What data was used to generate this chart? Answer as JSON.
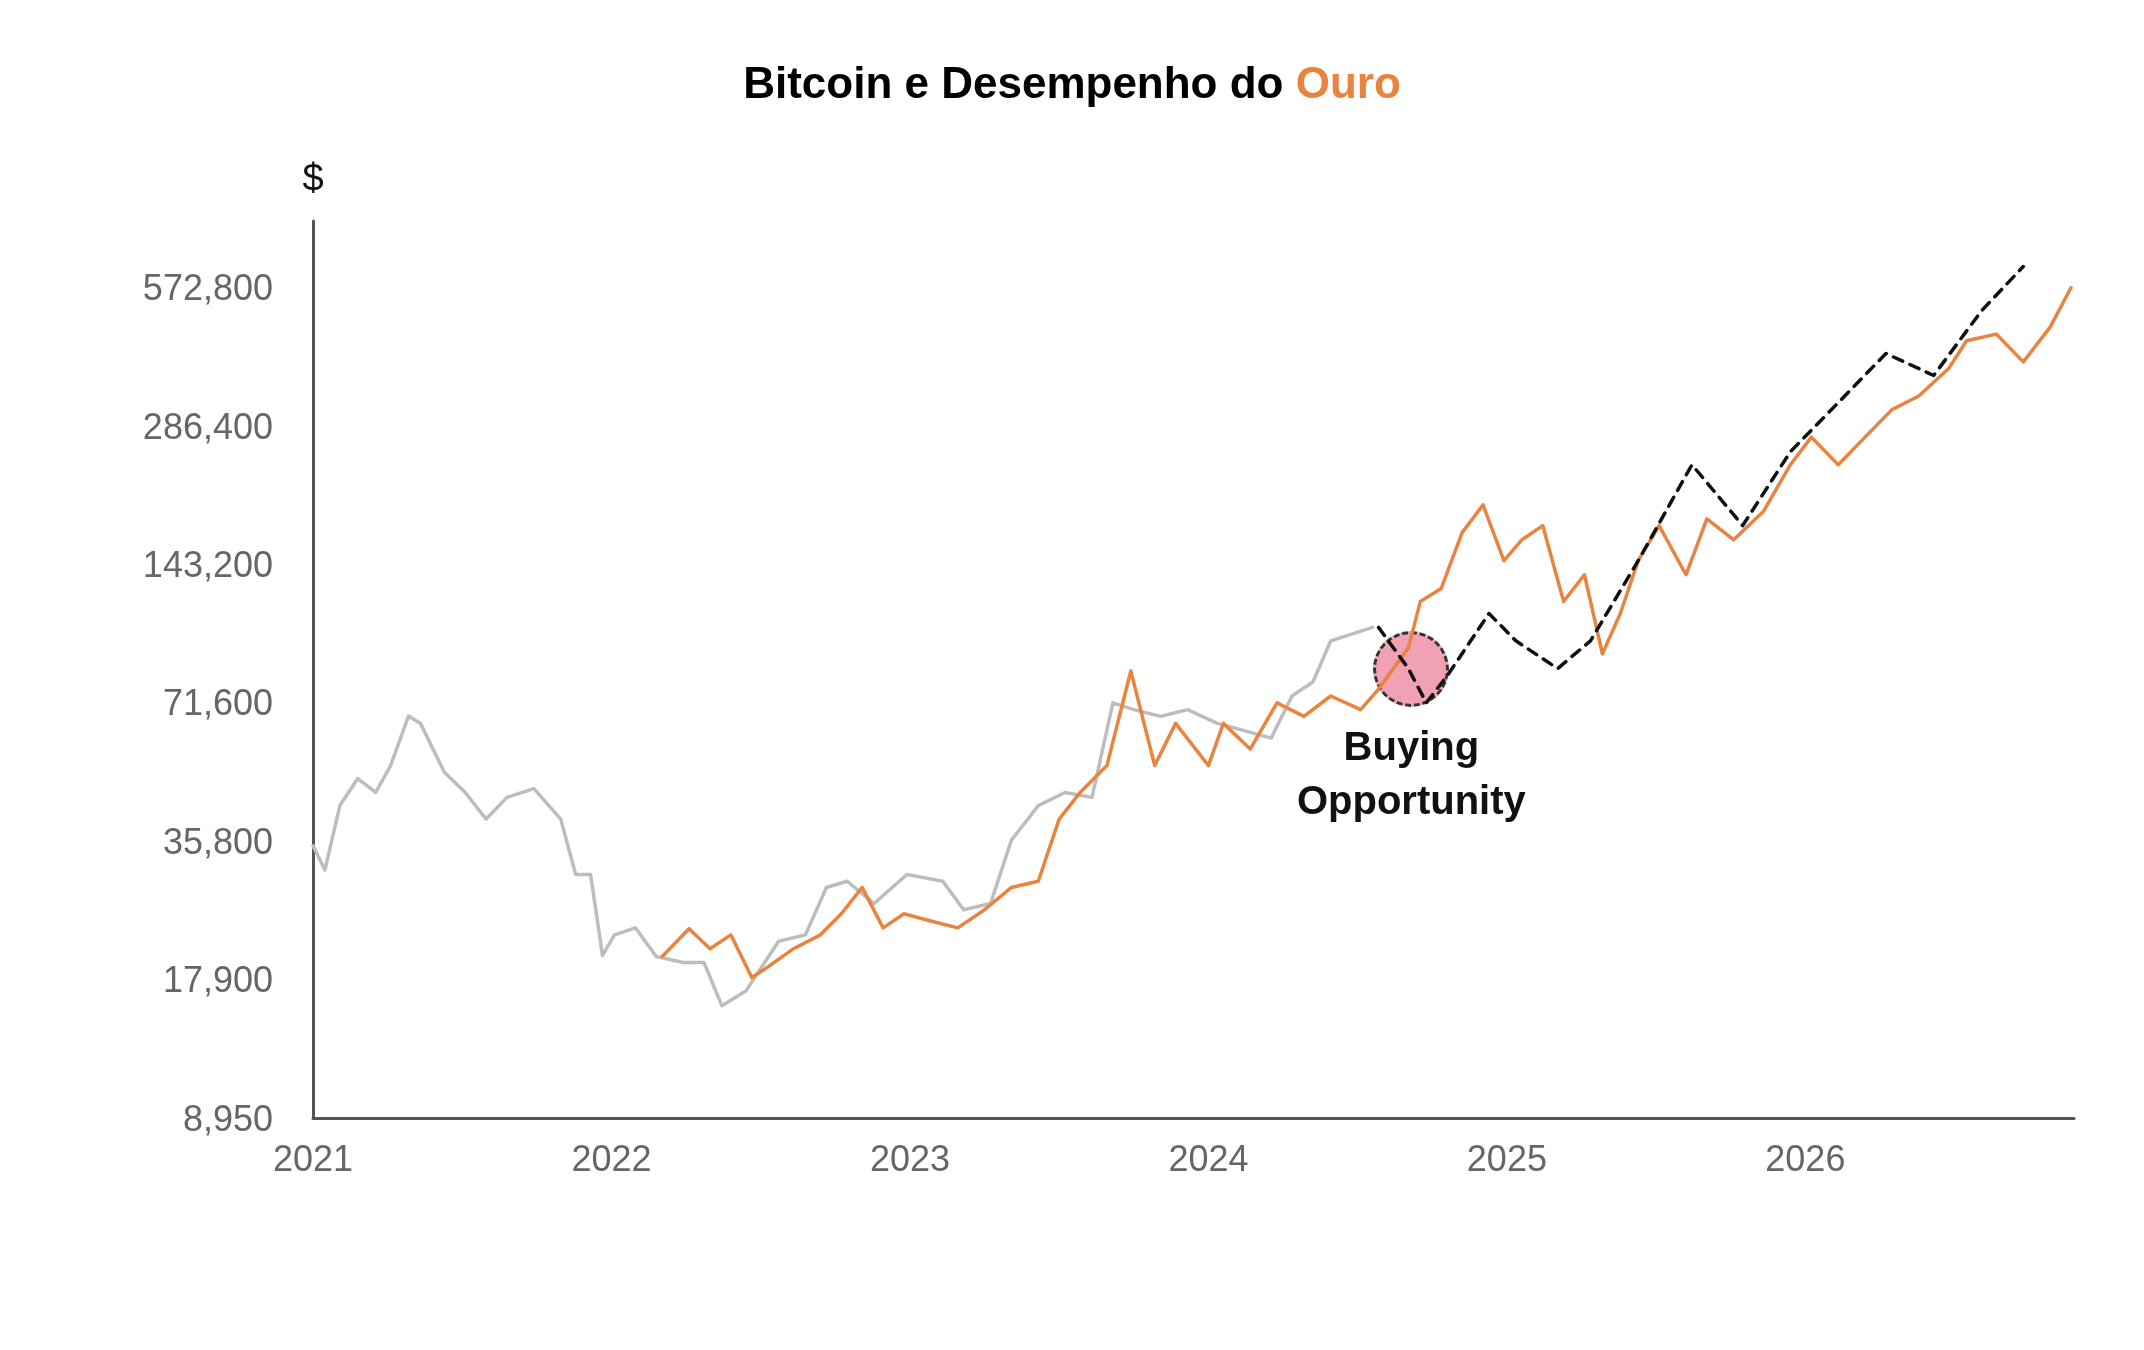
{
  "chart_data": {
    "type": "line",
    "title": "Bitcoin e Desempenho do Ouro",
    "ylabel": "$",
    "log": "y",
    "grid": false,
    "marker": "none",
    "xlim": [
      2021,
      2026.9
    ],
    "xticks": [
      2021,
      2022,
      2023,
      2024,
      2025,
      2026
    ],
    "ylim": [
      8950,
      800000
    ],
    "yticks": [
      {
        "value": 8950,
        "label": "8,950"
      },
      {
        "value": 17900,
        "label": "17,900"
      },
      {
        "value": 35800,
        "label": "35,800"
      },
      {
        "value": 71600,
        "label": "71,600"
      },
      {
        "value": 143200,
        "label": "143,200"
      },
      {
        "value": 286400,
        "label": "286,400"
      },
      {
        "value": 572800,
        "label": "572,800"
      }
    ],
    "annotations": [
      {
        "text": "Buying Opportunity",
        "x": 2024.68,
        "y": 85000
      }
    ],
    "series": [
      {
        "color": "#bdbdbd",
        "line_style": "solid",
        "x": [
          2021.0,
          2021.04,
          2021.09,
          2021.15,
          2021.21,
          2021.26,
          2021.32,
          2021.36,
          2021.44,
          2021.51,
          2021.58,
          2021.65,
          2021.74,
          2021.83,
          2021.88,
          2021.93,
          2021.97,
          2022.01,
          2022.08,
          2022.15,
          2022.24,
          2022.31,
          2022.37,
          2022.45,
          2022.56,
          2022.65,
          2022.72,
          2022.79,
          2022.88,
          2022.99,
          2023.11,
          2023.18,
          2023.27,
          2023.34,
          2023.43,
          2023.52,
          2023.61,
          2023.68,
          2023.75,
          2023.84,
          2023.93,
          2024.03,
          2024.12,
          2024.21,
          2024.28,
          2024.35,
          2024.41,
          2024.48,
          2024.55
        ],
        "values": [
          35000,
          31000,
          42800,
          49000,
          45700,
          52300,
          67000,
          64600,
          50600,
          45700,
          40000,
          44600,
          46600,
          40000,
          30300,
          30300,
          20200,
          22400,
          23200,
          20100,
          19500,
          19500,
          15700,
          16900,
          21700,
          22400,
          28400,
          29300,
          26200,
          30300,
          29300,
          25400,
          26200,
          36000,
          42800,
          45700,
          44600,
          71600,
          69200,
          66900,
          69200,
          64600,
          62300,
          60000,
          74100,
          79500,
          97700,
          101000,
          104500
        ]
      },
      {
        "color": "#e8843f",
        "line_style": "solid",
        "x": [
          2022.17,
          2022.26,
          2022.33,
          2022.4,
          2022.47,
          2022.51,
          2022.61,
          2022.7,
          2022.77,
          2022.84,
          2022.91,
          2022.98,
          2023.06,
          2023.16,
          2023.25,
          2023.34,
          2023.43,
          2023.5,
          2023.57,
          2023.66,
          2023.74,
          2023.82,
          2023.89,
          2024.0,
          2024.05,
          2024.14,
          2024.23,
          2024.32,
          2024.41,
          2024.51,
          2024.57,
          2024.67,
          2024.71,
          2024.78,
          2024.85,
          2024.92,
          2024.99,
          2025.05,
          2025.12,
          2025.19,
          2025.26,
          2025.32,
          2025.38,
          2025.44,
          2025.51,
          2025.6,
          2025.67,
          2025.76,
          2025.86,
          2025.95,
          2026.02,
          2026.11,
          2026.2,
          2026.29,
          2026.38,
          2026.48,
          2026.54,
          2026.64,
          2026.73,
          2026.82,
          2026.89
        ],
        "values": [
          20100,
          23100,
          20900,
          22400,
          18100,
          18800,
          20900,
          22400,
          24900,
          28400,
          23200,
          24900,
          24100,
          23200,
          25400,
          28400,
          29300,
          40000,
          45700,
          52300,
          84000,
          52300,
          64600,
          52300,
          64600,
          56800,
          71600,
          66900,
          74100,
          69200,
          76700,
          94300,
          119000,
          127000,
          168000,
          193000,
          146000,
          162000,
          174000,
          119000,
          136000,
          91500,
          112000,
          146000,
          174000,
          136000,
          180000,
          162000,
          187000,
          236000,
          271000,
          236000,
          271000,
          311000,
          333000,
          382000,
          439000,
          454000,
          395000,
          470000,
          572800
        ]
      },
      {
        "color": "#111111",
        "line_style": "dashed",
        "x": [
          2024.57,
          2024.67,
          2024.73,
          2024.8,
          2024.94,
          2025.03,
          2025.17,
          2025.28,
          2025.44,
          2025.62,
          2025.79,
          2025.95,
          2026.11,
          2026.27,
          2026.43,
          2026.59,
          2026.73
        ],
        "values": [
          104500,
          85000,
          71600,
          82000,
          112000,
          97700,
          85000,
          97700,
          146000,
          236000,
          174000,
          252000,
          322000,
          412000,
          369000,
          510000,
          637000
        ]
      }
    ]
  }
}
